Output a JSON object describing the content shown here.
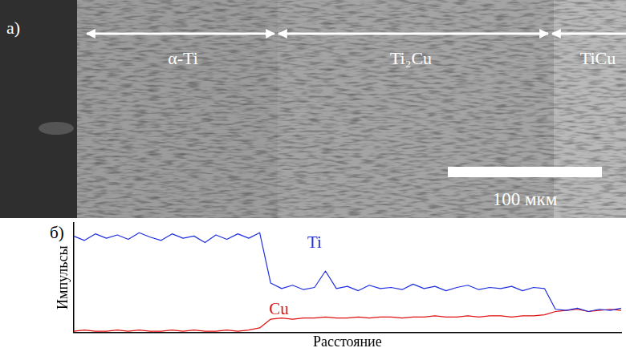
{
  "micrograph": {
    "label": "a)",
    "phases": [
      "α-Ti",
      "Ti₂Cu",
      "TiCu"
    ],
    "scale_bar": "100 мкм"
  },
  "chart_data": {
    "type": "line",
    "label": "б)",
    "x_label": "Расстояние",
    "y_label": "Импульсы",
    "x": [
      0,
      2,
      4,
      6,
      8,
      10,
      12,
      14,
      16,
      18,
      20,
      22,
      24,
      26,
      28,
      30,
      32,
      34,
      36,
      38,
      40,
      42,
      44,
      46,
      48,
      50,
      52,
      54,
      56,
      58,
      60,
      62,
      64,
      66,
      68,
      70,
      72,
      74,
      76,
      78,
      80,
      82,
      84,
      86,
      88,
      90,
      92,
      94,
      96,
      98,
      100
    ],
    "series": [
      {
        "name": "Ti",
        "color": "#1f2fe0",
        "values": [
          88,
          84,
          90,
          86,
          89,
          85,
          91,
          87,
          84,
          90,
          86,
          88,
          82,
          89,
          85,
          90,
          86,
          91,
          45,
          40,
          43,
          39,
          41,
          56,
          40,
          42,
          38,
          43,
          40,
          41,
          39,
          44,
          40,
          42,
          38,
          41,
          43,
          39,
          41,
          40,
          42,
          38,
          41,
          40,
          21,
          20,
          22,
          19,
          21,
          20,
          22
        ]
      },
      {
        "name": "Cu",
        "color": "#e01010",
        "values": [
          1,
          2,
          1,
          1,
          2,
          1,
          2,
          1,
          1,
          2,
          1,
          2,
          1,
          1,
          2,
          1,
          2,
          4,
          12,
          13,
          12,
          13,
          13,
          14,
          13,
          13,
          14,
          13,
          14,
          14,
          13,
          14,
          14,
          15,
          14,
          14,
          15,
          14,
          15,
          15,
          14,
          15,
          15,
          16,
          19,
          20,
          21,
          19,
          20,
          21,
          20
        ]
      }
    ],
    "xlim": [
      0,
      100
    ],
    "ylim": [
      0,
      100
    ],
    "tick_labels": false,
    "grid": false
  }
}
